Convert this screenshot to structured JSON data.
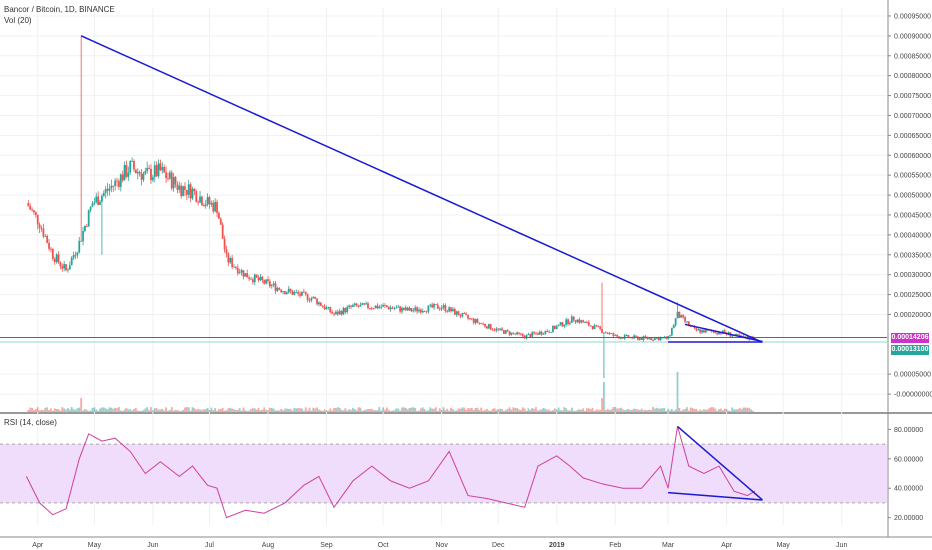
{
  "header": {
    "title": "Bancor / Bitcoin, 1D, BINANCE",
    "volume_label": "Vol (20)",
    "rsi_label": "RSI (14, close)"
  },
  "price_tags": {
    "magenta": "0.00014206",
    "teal": "0.00013100"
  },
  "colors": {
    "up": "#26a69a",
    "down": "#ef5350",
    "trendline": "#1a1ad4",
    "hline": "#b030b0",
    "rsi_line": "#d0409a",
    "rsi_band": "#f0dcfb",
    "tag_magenta": "#cc33cc",
    "tag_teal": "#26a69a"
  },
  "chart_data": [
    {
      "type": "candlestick",
      "title": "Bancor / Bitcoin, 1D, BINANCE",
      "price_axis_ticks": [
        "0.00095000",
        "0.00090000",
        "0.00085000",
        "0.00080000",
        "0.00075000",
        "0.00070000",
        "0.00065000",
        "0.00060000",
        "0.00055000",
        "0.00050000",
        "0.00045000",
        "0.00040000",
        "0.00035000",
        "0.00030000",
        "0.00025000",
        "0.00020000",
        "0.00005000",
        "-0.00000000"
      ],
      "time_axis_ticks": [
        "Apr",
        "May",
        "Jun",
        "Jul",
        "Aug",
        "Sep",
        "Oct",
        "Nov",
        "Dec",
        "2019",
        "Feb",
        "Mar",
        "Apr",
        "May",
        "Jun"
      ],
      "series": [
        {
          "name": "Vol (20)",
          "type": "volume"
        }
      ],
      "close_path": [
        {
          "date": "2018-03-26",
          "close": 0.00048
        },
        {
          "date": "2018-04-02",
          "close": 0.00043
        },
        {
          "date": "2018-04-09",
          "close": 0.00035
        },
        {
          "date": "2018-04-16",
          "close": 0.00031
        },
        {
          "date": "2018-04-23",
          "close": 0.00038
        },
        {
          "date": "2018-04-30",
          "close": 0.00048
        },
        {
          "date": "2018-05-05",
          "close": 0.0005
        },
        {
          "date": "2018-05-12",
          "close": 0.00053
        },
        {
          "date": "2018-05-20",
          "close": 0.00057
        },
        {
          "date": "2018-05-28",
          "close": 0.00055
        },
        {
          "date": "2018-06-05",
          "close": 0.00056
        },
        {
          "date": "2018-06-15",
          "close": 0.00052
        },
        {
          "date": "2018-06-22",
          "close": 0.00051
        },
        {
          "date": "2018-06-30",
          "close": 0.00048
        },
        {
          "date": "2018-07-05",
          "close": 0.00047
        },
        {
          "date": "2018-07-10",
          "close": 0.00034
        },
        {
          "date": "2018-07-20",
          "close": 0.0003
        },
        {
          "date": "2018-07-30",
          "close": 0.00028
        },
        {
          "date": "2018-08-10",
          "close": 0.00026
        },
        {
          "date": "2018-08-25",
          "close": 0.00024
        },
        {
          "date": "2018-09-05",
          "close": 0.0002
        },
        {
          "date": "2018-09-15",
          "close": 0.00022
        },
        {
          "date": "2018-10-01",
          "close": 0.00022
        },
        {
          "date": "2018-10-15",
          "close": 0.00021
        },
        {
          "date": "2018-11-01",
          "close": 0.00022
        },
        {
          "date": "2018-11-15",
          "close": 0.00019
        },
        {
          "date": "2018-12-01",
          "close": 0.00016
        },
        {
          "date": "2018-12-15",
          "close": 0.000145
        },
        {
          "date": "2018-12-28",
          "close": 0.00016
        },
        {
          "date": "2019-01-10",
          "close": 0.00019
        },
        {
          "date": "2019-01-20",
          "close": 0.00017
        },
        {
          "date": "2019-02-01",
          "close": 0.000145
        },
        {
          "date": "2019-02-15",
          "close": 0.00014
        },
        {
          "date": "2019-03-01",
          "close": 0.00014
        },
        {
          "date": "2019-03-06",
          "close": 0.0002
        },
        {
          "date": "2019-03-15",
          "close": 0.00016
        },
        {
          "date": "2019-03-30",
          "close": 0.000155
        },
        {
          "date": "2019-04-10",
          "close": 0.00014
        },
        {
          "date": "2019-04-15",
          "close": 0.000142
        }
      ],
      "spikes": [
        {
          "date": "2018-04-24",
          "high": 0.0009
        },
        {
          "date": "2019-01-25",
          "high": 0.00028
        },
        {
          "date": "2019-03-06",
          "high": 0.00023
        }
      ],
      "horizontal_lines": [
        0.00014206,
        0.000131
      ],
      "trendlines": [
        {
          "from": {
            "date": "2018-04-24",
            "value": 0.0009
          },
          "to": {
            "date": "2019-04-20",
            "value": 0.00013
          }
        },
        {
          "from": {
            "date": "2019-03-01",
            "value": 0.000131
          },
          "to": {
            "date": "2019-04-20",
            "value": 0.000131
          }
        },
        {
          "from": {
            "date": "2019-03-10",
            "value": 0.000175
          },
          "to": {
            "date": "2019-04-20",
            "value": 0.000132
          }
        }
      ],
      "grid": true,
      "y_scale": "linear"
    },
    {
      "type": "line",
      "title": "RSI (14, close)",
      "y_ticks": [
        "80.00000",
        "60.00000",
        "40.00000",
        "20.00000"
      ],
      "ylim": [
        15,
        85
      ],
      "band": [
        30,
        70
      ],
      "points": [
        {
          "date": "2018-03-26",
          "rsi": 48
        },
        {
          "date": "2018-04-02",
          "rsi": 30
        },
        {
          "date": "2018-04-09",
          "rsi": 22
        },
        {
          "date": "2018-04-16",
          "rsi": 26
        },
        {
          "date": "2018-04-23",
          "rsi": 60
        },
        {
          "date": "2018-04-28",
          "rsi": 77
        },
        {
          "date": "2018-05-05",
          "rsi": 72
        },
        {
          "date": "2018-05-12",
          "rsi": 74
        },
        {
          "date": "2018-05-20",
          "rsi": 65
        },
        {
          "date": "2018-05-28",
          "rsi": 50
        },
        {
          "date": "2018-06-05",
          "rsi": 58
        },
        {
          "date": "2018-06-15",
          "rsi": 48
        },
        {
          "date": "2018-06-22",
          "rsi": 55
        },
        {
          "date": "2018-06-30",
          "rsi": 42
        },
        {
          "date": "2018-07-05",
          "rsi": 40
        },
        {
          "date": "2018-07-10",
          "rsi": 20
        },
        {
          "date": "2018-07-20",
          "rsi": 25
        },
        {
          "date": "2018-07-30",
          "rsi": 23
        },
        {
          "date": "2018-08-10",
          "rsi": 30
        },
        {
          "date": "2018-08-20",
          "rsi": 42
        },
        {
          "date": "2018-08-28",
          "rsi": 48
        },
        {
          "date": "2018-09-05",
          "rsi": 27
        },
        {
          "date": "2018-09-15",
          "rsi": 45
        },
        {
          "date": "2018-09-25",
          "rsi": 55
        },
        {
          "date": "2018-10-05",
          "rsi": 45
        },
        {
          "date": "2018-10-15",
          "rsi": 40
        },
        {
          "date": "2018-10-25",
          "rsi": 45
        },
        {
          "date": "2018-11-05",
          "rsi": 65
        },
        {
          "date": "2018-11-15",
          "rsi": 35
        },
        {
          "date": "2018-11-25",
          "rsi": 33
        },
        {
          "date": "2018-12-05",
          "rsi": 30
        },
        {
          "date": "2018-12-15",
          "rsi": 27
        },
        {
          "date": "2018-12-22",
          "rsi": 55
        },
        {
          "date": "2019-01-01",
          "rsi": 62
        },
        {
          "date": "2019-01-08",
          "rsi": 55
        },
        {
          "date": "2019-01-15",
          "rsi": 47
        },
        {
          "date": "2019-01-25",
          "rsi": 43
        },
        {
          "date": "2019-02-05",
          "rsi": 40
        },
        {
          "date": "2019-02-15",
          "rsi": 40
        },
        {
          "date": "2019-02-25",
          "rsi": 55
        },
        {
          "date": "2019-03-01",
          "rsi": 40
        },
        {
          "date": "2019-03-06",
          "rsi": 82
        },
        {
          "date": "2019-03-12",
          "rsi": 55
        },
        {
          "date": "2019-03-20",
          "rsi": 50
        },
        {
          "date": "2019-03-28",
          "rsi": 55
        },
        {
          "date": "2019-04-05",
          "rsi": 38
        },
        {
          "date": "2019-04-12",
          "rsi": 35
        },
        {
          "date": "2019-04-16",
          "rsi": 38
        }
      ],
      "trendlines": [
        {
          "from": {
            "date": "2019-03-06",
            "value": 82
          },
          "to": {
            "date": "2019-04-20",
            "value": 32
          }
        },
        {
          "from": {
            "date": "2019-03-01",
            "value": 37
          },
          "to": {
            "date": "2019-04-20",
            "value": 32
          }
        }
      ]
    }
  ]
}
